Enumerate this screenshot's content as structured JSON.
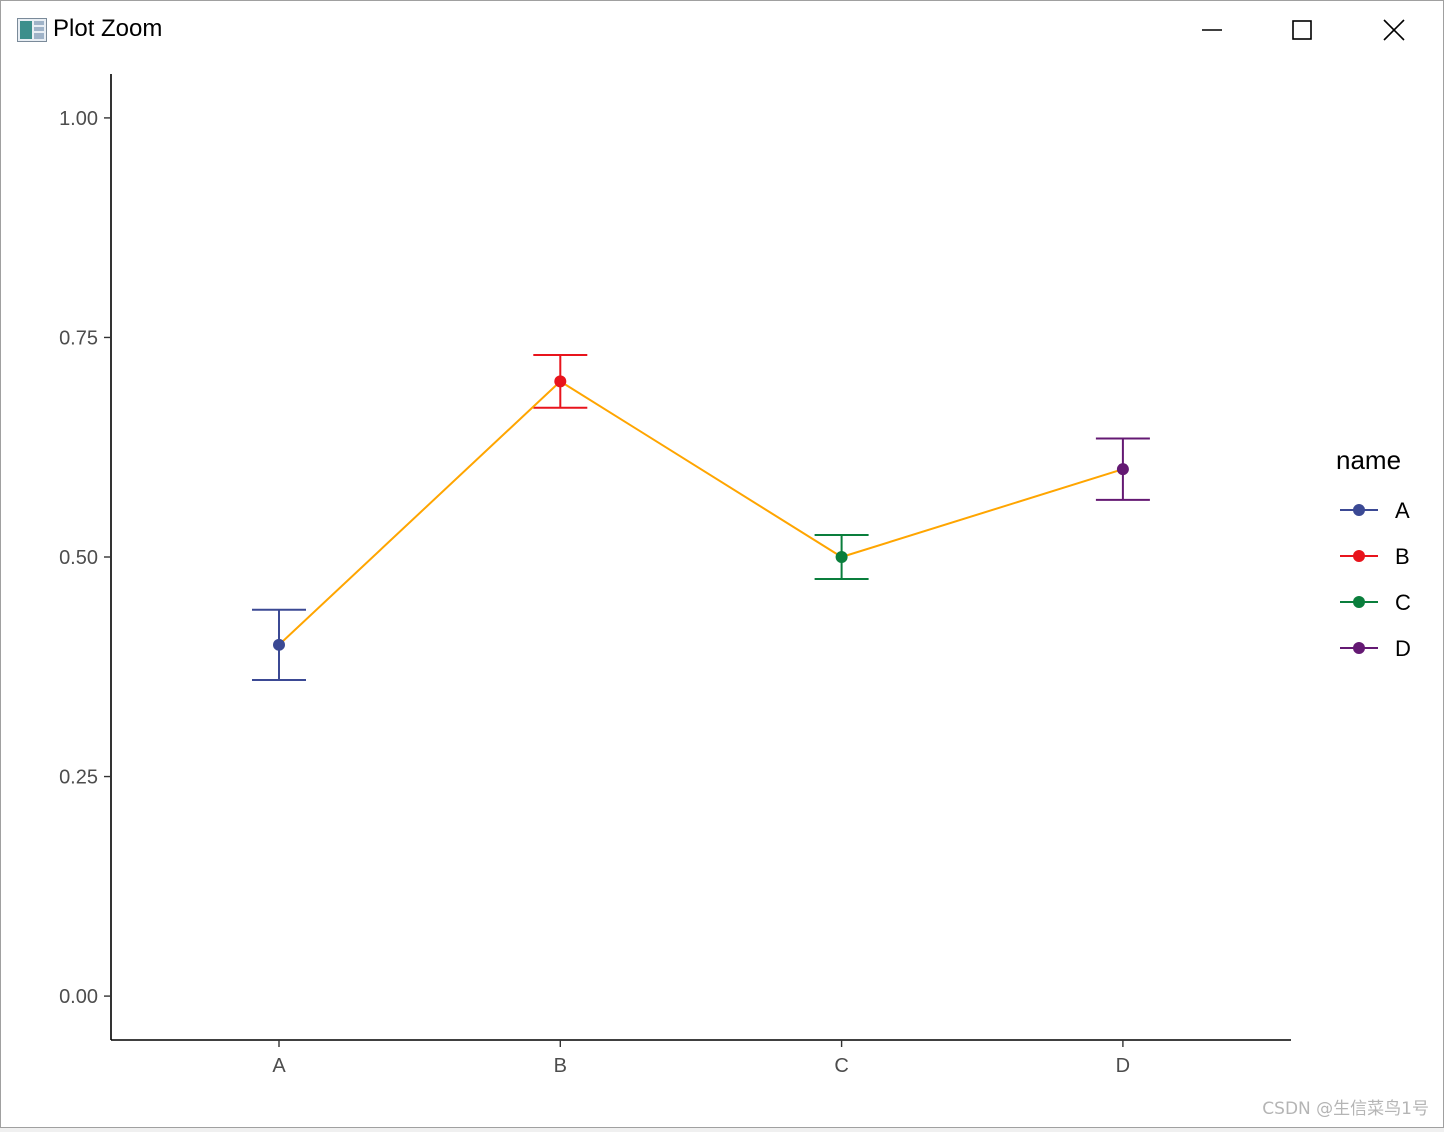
{
  "window": {
    "title": "Plot Zoom",
    "icons": {
      "app": "plot-window-icon",
      "minimize": "minimize-icon",
      "maximize": "maximize-icon",
      "close": "close-icon"
    }
  },
  "colors": {
    "line": "#FFA500",
    "A": "#3B4994",
    "B": "#E8141C",
    "C": "#0A7E3C",
    "D": "#641973",
    "axis": "#000000",
    "tick_label": "#4D4D4D"
  },
  "chart_data": {
    "type": "line",
    "categories": [
      "A",
      "B",
      "C",
      "D"
    ],
    "series": [
      {
        "values": [
          0.4,
          0.7,
          0.5,
          0.6
        ],
        "error_low": [
          0.36,
          0.67,
          0.475,
          0.565
        ],
        "error_high": [
          0.44,
          0.73,
          0.525,
          0.635
        ]
      }
    ],
    "point_colors": [
      "#3B4994",
      "#E8141C",
      "#0A7E3C",
      "#641973"
    ],
    "line_color": "#FFA500",
    "ylim": [
      -0.05,
      1.05
    ],
    "yticks": [
      0.0,
      0.25,
      0.5,
      0.75,
      1.0
    ],
    "ytick_labels": [
      "0.00",
      "0.25",
      "0.50",
      "0.75",
      "1.00"
    ],
    "xlabel": "",
    "ylabel": "",
    "grid": false,
    "legend": {
      "title": "name",
      "position": "right",
      "entries": [
        "A",
        "B",
        "C",
        "D"
      ]
    }
  },
  "watermark": "CSDN @生信菜鸟1号"
}
